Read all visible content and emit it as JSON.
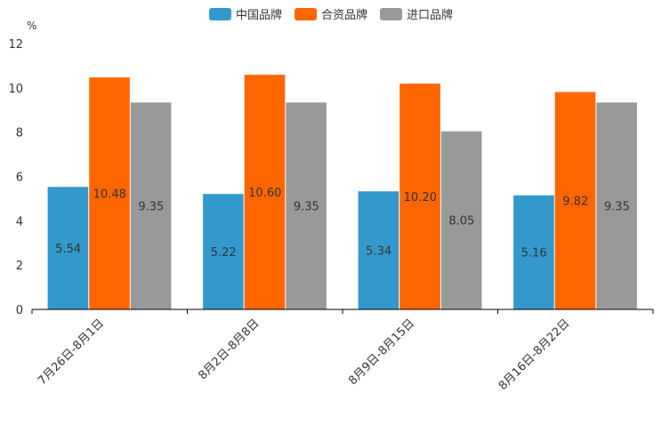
{
  "chart_data": {
    "type": "bar",
    "title": "",
    "xlabel": "",
    "ylabel": "%",
    "ylim": [
      0,
      12
    ],
    "yticks": [
      0,
      2,
      4,
      6,
      8,
      10,
      12
    ],
    "grid": false,
    "legend_position": "top-center",
    "categories": [
      "7月26日-8月1日",
      "8月2日-8月8日",
      "8月9日-8月15日",
      "8月16日-8月22日"
    ],
    "series": [
      {
        "name": "中国品牌",
        "color": "#3399cc",
        "values": [
          5.54,
          5.22,
          5.34,
          5.16
        ],
        "labels": [
          "5.54",
          "5.22",
          "5.34",
          "5.16"
        ]
      },
      {
        "name": "合资品牌",
        "color": "#ff6600",
        "values": [
          10.48,
          10.6,
          10.2,
          9.82
        ],
        "labels": [
          "10.48",
          "10.60",
          "10.20",
          "9.82"
        ]
      },
      {
        "name": "进口品牌",
        "color": "#999999",
        "values": [
          9.35,
          9.35,
          8.05,
          9.35
        ],
        "labels": [
          "9.35",
          "9.35",
          "8.05",
          "9.35"
        ]
      }
    ]
  }
}
